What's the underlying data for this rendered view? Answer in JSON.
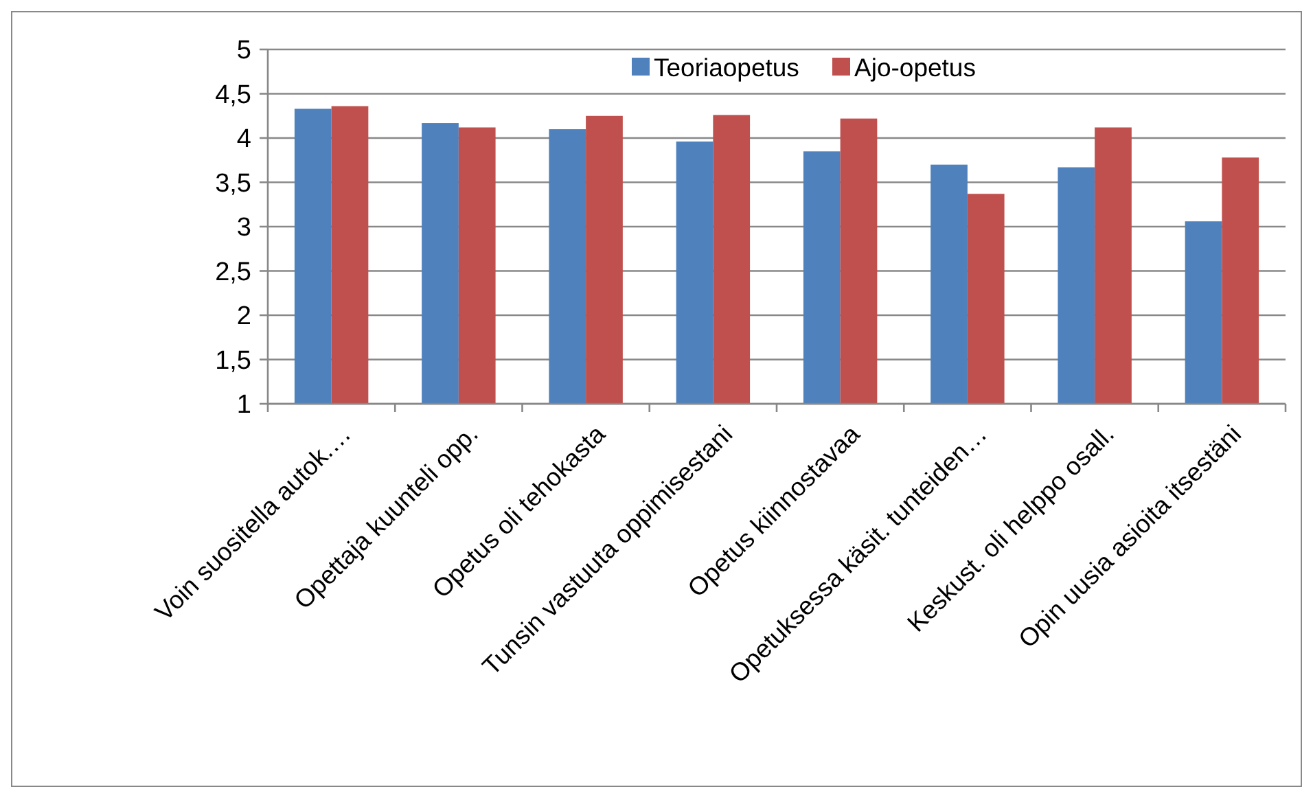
{
  "chart_data": {
    "type": "bar",
    "categories": [
      "Voin suositella autok.…",
      "Opettaja kuunteli opp.",
      "Opetus oli tehokasta",
      "Tunsin vastuuta oppimisestani",
      "Opetus kiinnostavaa",
      "Opetuksessa käsit. tunteiden…",
      "Keskust. oli helppo osall.",
      "Opin uusia asioita itsestäni"
    ],
    "series": [
      {
        "name": "Teoriaopetus",
        "color": "#4f81bd",
        "values": [
          4.33,
          4.17,
          4.1,
          3.96,
          3.85,
          3.7,
          3.67,
          3.06
        ]
      },
      {
        "name": "Ajo-opetus",
        "color": "#c0504d",
        "values": [
          4.36,
          4.12,
          4.25,
          4.26,
          4.22,
          3.37,
          4.12,
          3.78
        ]
      }
    ],
    "ylim": [
      1,
      5
    ],
    "yticks": [
      1,
      {
        "value": 1.5,
        "label": "1,5"
      },
      2,
      {
        "value": 2.5,
        "label": "2,5"
      },
      3,
      {
        "value": 3.5,
        "label": "3,5"
      },
      4,
      {
        "value": 4.5,
        "label": "4,5"
      },
      5
    ],
    "grid": "y",
    "legend": "top"
  }
}
